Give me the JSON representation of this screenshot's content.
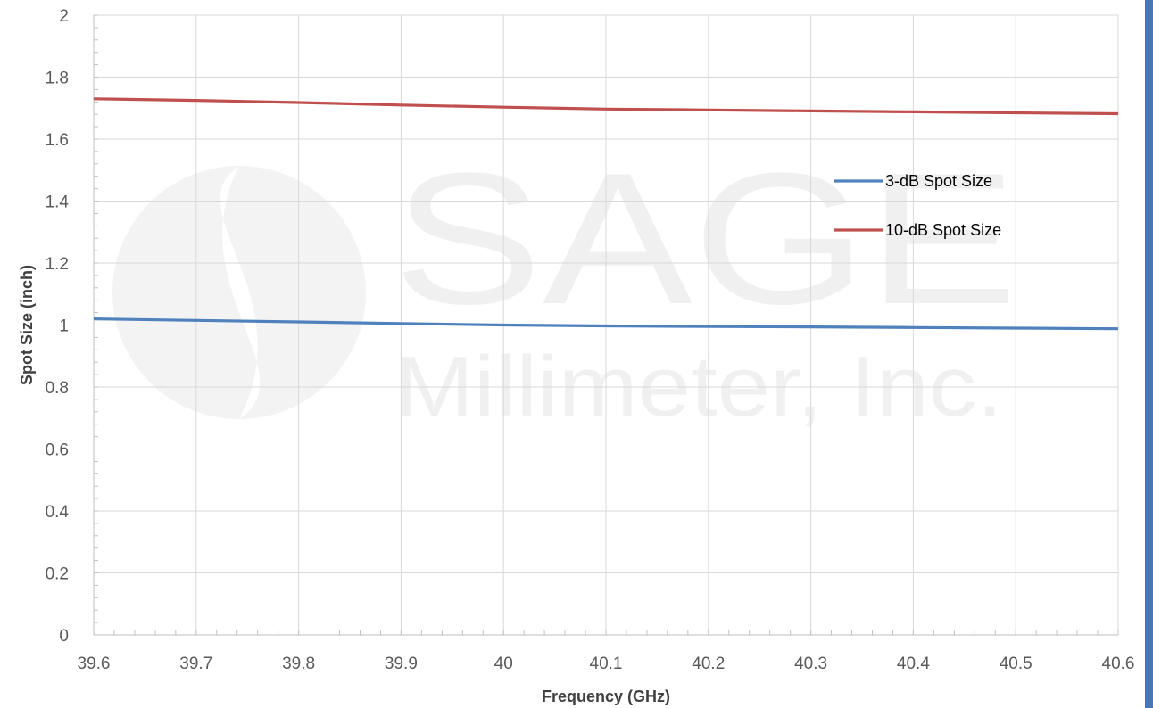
{
  "watermark": {
    "line1": "SAGE",
    "line2": "Millimeter, Inc."
  },
  "colors": {
    "series_3db": "#4f81bd",
    "series_10db": "#c0504d",
    "grid": "#d9d9d9",
    "axis": "#bfbfbf",
    "right_bar": "#4a76b8"
  },
  "chart_data": {
    "type": "line",
    "title": "",
    "xlabel": "Frequency (GHz)",
    "ylabel": "Spot Size (inch)",
    "xlim": [
      39.6,
      40.6
    ],
    "ylim": [
      0,
      2
    ],
    "x_ticks": [
      "39.6",
      "39.7",
      "39.8",
      "39.9",
      "40",
      "40.1",
      "40.2",
      "40.3",
      "40.4",
      "40.5",
      "40.6"
    ],
    "y_ticks": [
      "0",
      "0.2",
      "0.4",
      "0.6",
      "0.8",
      "1",
      "1.2",
      "1.4",
      "1.6",
      "1.8",
      "2"
    ],
    "grid": true,
    "legend_position": "right",
    "series": [
      {
        "name": "3-dB Spot Size",
        "color": "#4f81bd",
        "x": [
          39.6,
          39.7,
          39.8,
          39.9,
          40.0,
          40.1,
          40.2,
          40.3,
          40.4,
          40.5,
          40.6
        ],
        "y": [
          1.02,
          1.015,
          1.01,
          1.005,
          1.0,
          0.997,
          0.995,
          0.994,
          0.992,
          0.99,
          0.988
        ]
      },
      {
        "name": "10-dB Spot Size",
        "color": "#c0504d",
        "x": [
          39.6,
          39.7,
          39.8,
          39.9,
          40.0,
          40.1,
          40.2,
          40.3,
          40.4,
          40.5,
          40.6
        ],
        "y": [
          1.73,
          1.725,
          1.718,
          1.71,
          1.703,
          1.697,
          1.694,
          1.691,
          1.688,
          1.685,
          1.682
        ]
      }
    ]
  }
}
